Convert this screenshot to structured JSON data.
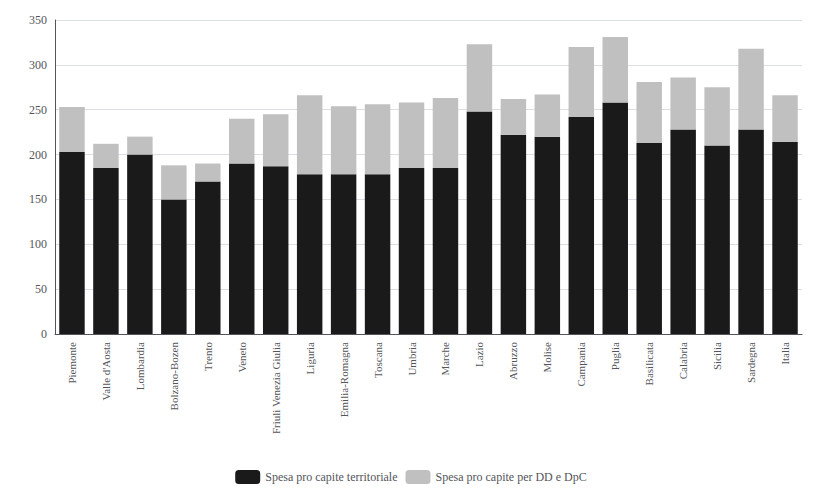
{
  "chart_data": {
    "type": "bar",
    "stacked": true,
    "categories": [
      "Piemonte",
      "Valle d'Aosta",
      "Lombardia",
      "Bolzano-Bozen",
      "Trento",
      "Veneto",
      "Friuli Venezia Giulia",
      "Liguria",
      "Emilia-Romagna",
      "Toscana",
      "Umbria",
      "Marche",
      "Lazio",
      "Abruzzo",
      "Molise",
      "Campania",
      "Puglia",
      "Basilicata",
      "Calabria",
      "Sicilia",
      "Sardegna",
      "Italia"
    ],
    "series": [
      {
        "name": "Spesa pro capite territoriale",
        "color": "#1a1a1a",
        "values": [
          203,
          185,
          200,
          150,
          170,
          190,
          187,
          178,
          178,
          178,
          185,
          185,
          248,
          222,
          220,
          242,
          258,
          213,
          228,
          210,
          228,
          214
        ]
      },
      {
        "name": "Spesa pro capite per DD e DpC",
        "color": "#c0c0c0",
        "values": [
          50,
          27,
          20,
          38,
          20,
          50,
          58,
          88,
          76,
          78,
          73,
          78,
          75,
          40,
          47,
          78,
          73,
          68,
          58,
          65,
          90,
          52
        ]
      }
    ],
    "ylim": [
      0,
      350
    ],
    "yticks": [
      0,
      50,
      100,
      150,
      200,
      250,
      300,
      350
    ],
    "grid": true,
    "legend": "bottom"
  }
}
